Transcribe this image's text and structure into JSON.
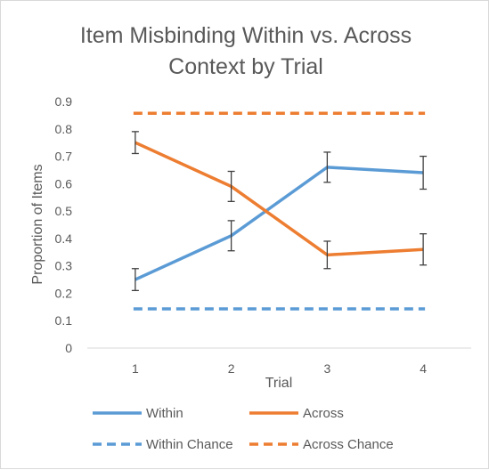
{
  "chart_data": {
    "type": "line",
    "title_lines": [
      "Item Misbinding Within vs. Across",
      "Context by Trial"
    ],
    "xlabel": "Trial",
    "ylabel": "Proportion of Items",
    "categories": [
      "1",
      "2",
      "3",
      "4"
    ],
    "ylim": [
      0,
      0.9
    ],
    "yticks": [
      "0",
      "0.1",
      "0.2",
      "0.3",
      "0.4",
      "0.5",
      "0.6",
      "0.7",
      "0.8",
      "0.9"
    ],
    "grid": false,
    "legend_position": "bottom",
    "series": [
      {
        "name": "Within",
        "values": [
          0.25,
          0.41,
          0.66,
          0.64
        ],
        "err": [
          0.04,
          0.055,
          0.055,
          0.06
        ],
        "color": "#5b9bd5",
        "dash": false
      },
      {
        "name": "Across",
        "values": [
          0.75,
          0.59,
          0.34,
          0.36
        ],
        "err": [
          0.04,
          0.055,
          0.05,
          0.057
        ],
        "color": "#ed7d31",
        "dash": false
      },
      {
        "name": "Within Chance",
        "values": [
          0.143,
          0.143,
          0.143,
          0.143
        ],
        "color": "#5b9bd5",
        "dash": true
      },
      {
        "name": "Across Chance",
        "values": [
          0.857,
          0.857,
          0.857,
          0.857
        ],
        "color": "#ed7d31",
        "dash": true
      }
    ]
  }
}
